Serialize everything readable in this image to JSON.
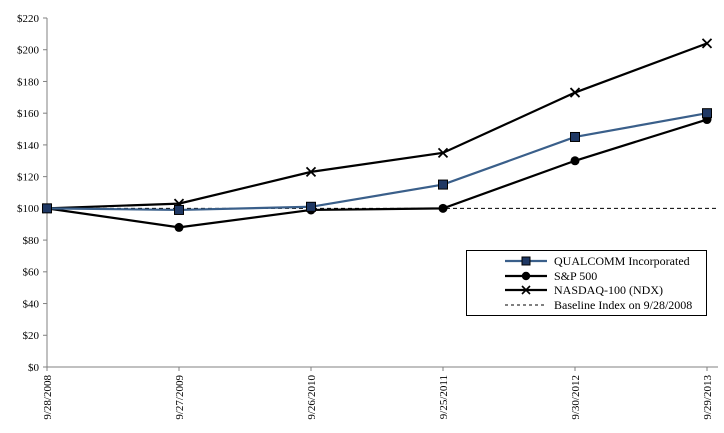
{
  "chart_data": {
    "type": "line",
    "title": "",
    "xlabel": "",
    "ylabel": "",
    "grid": false,
    "legend_position": "bottom-right",
    "x_categories": [
      "9/28/2008",
      "9/27/2009",
      "9/26/2010",
      "9/25/2011",
      "9/30/2012",
      "9/29/2013"
    ],
    "y_axis": {
      "min": 0,
      "max": 220,
      "step": 20,
      "tick_prefix": "$"
    },
    "series": [
      {
        "name": "QUALCOMM Incorporated",
        "marker": "square",
        "line_color": "#3a5f8a",
        "marker_fill": "#1f3864",
        "marker_stroke": "#000000",
        "values": [
          100,
          99,
          101,
          115,
          145,
          160
        ]
      },
      {
        "name": "S&P 500",
        "marker": "circle",
        "line_color": "#000000",
        "marker_fill": "#000000",
        "marker_stroke": "#000000",
        "values": [
          100,
          88,
          99,
          100,
          130,
          156
        ]
      },
      {
        "name": "NASDAQ-100 (NDX)",
        "marker": "x",
        "line_color": "#000000",
        "marker_fill": "#000000",
        "marker_stroke": "#000000",
        "values": [
          100,
          103,
          123,
          135,
          173,
          204
        ]
      }
    ],
    "baseline": {
      "name": "Baseline Index on 9/28/2008",
      "value": 100,
      "line_style": "dashed",
      "color": "#000000"
    },
    "colors": {
      "axis": "#808080",
      "text": "#000000",
      "background": "#ffffff"
    }
  }
}
